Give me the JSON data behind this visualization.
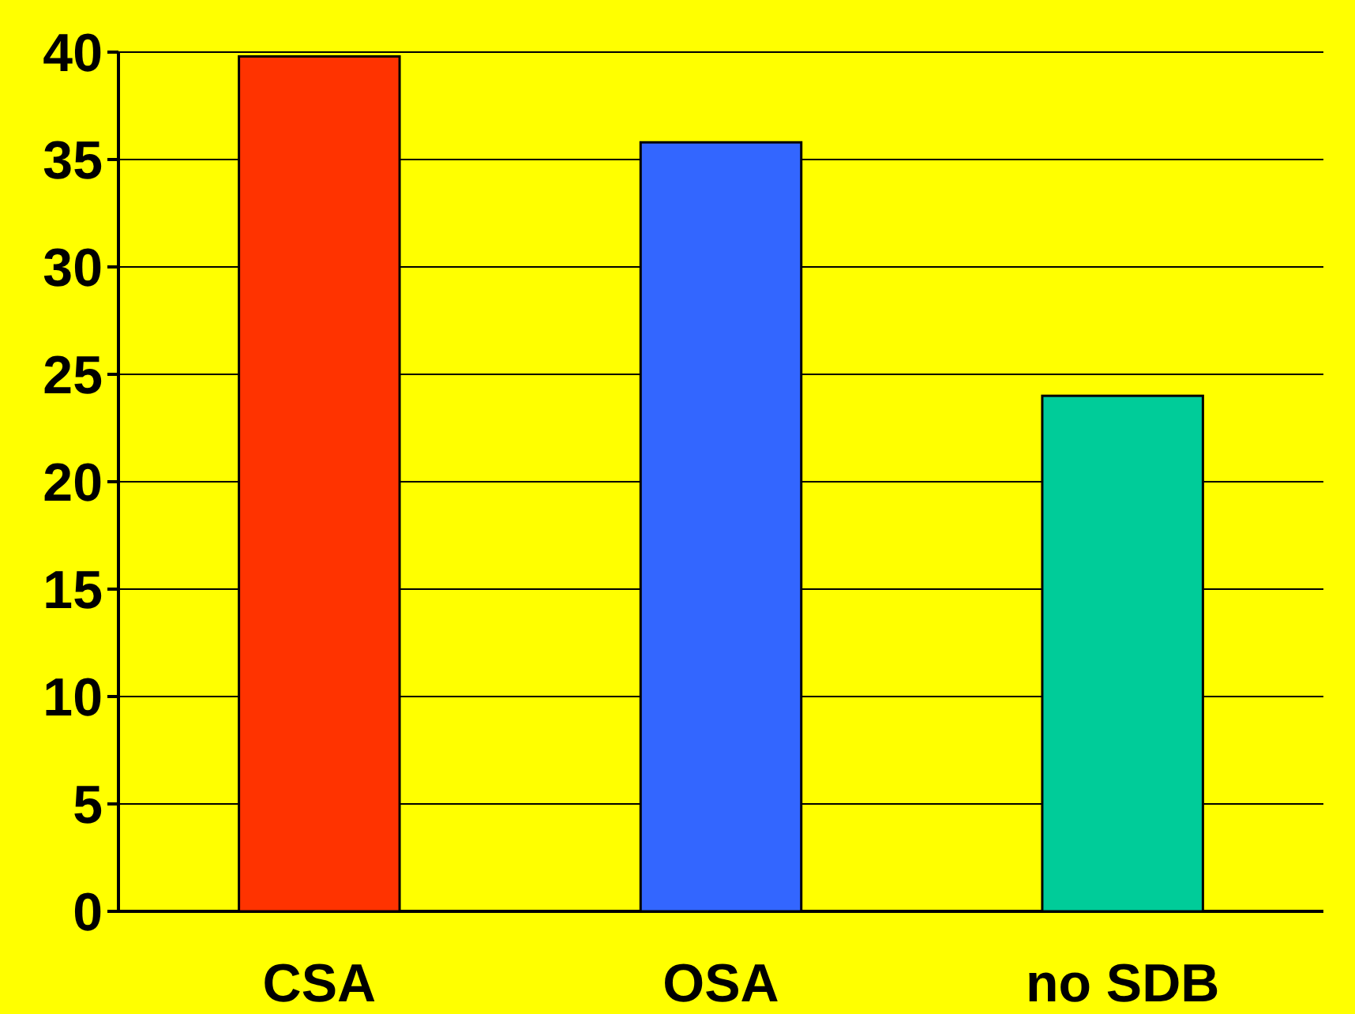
{
  "chart_data": {
    "type": "bar",
    "categories": [
      "CSA",
      "OSA",
      "no SDB"
    ],
    "values": [
      39.8,
      35.8,
      24
    ],
    "colors": [
      "#ff3300",
      "#3366ff",
      "#00cc99"
    ],
    "ylim": [
      0,
      40
    ],
    "yticks": [
      0,
      5,
      10,
      15,
      20,
      25,
      30,
      35,
      40
    ],
    "grid": "y"
  }
}
